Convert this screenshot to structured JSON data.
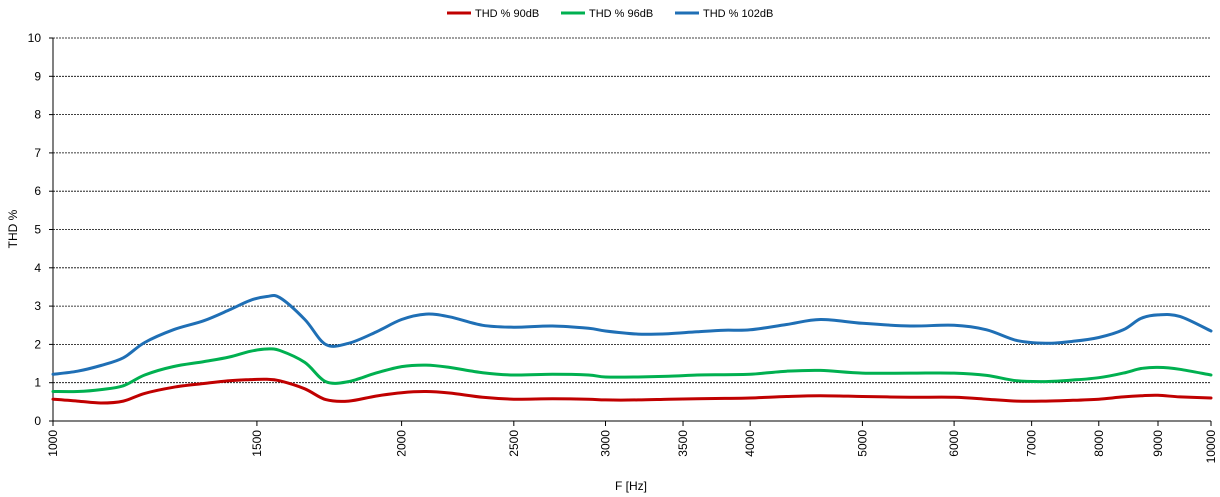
{
  "chart_data": {
    "type": "line",
    "title": "",
    "xlabel": "F [Hz]",
    "ylabel": "THD %",
    "ylim": [
      0,
      10
    ],
    "yticks": [
      "0",
      "1",
      "2",
      "3",
      "4",
      "5",
      "6",
      "7",
      "8",
      "9",
      "10"
    ],
    "xscale": "log",
    "xlim": [
      1000,
      10000
    ],
    "xticks": [
      "1000",
      "1500",
      "2000",
      "2500",
      "3000",
      "3500",
      "4000",
      "5000",
      "6000",
      "7000",
      "8000",
      "9000",
      "10000"
    ],
    "x_tick_positions": [
      1000,
      1500,
      2000,
      2500,
      3000,
      3500,
      4000,
      5000,
      6000,
      7000,
      8000,
      9000,
      10000
    ],
    "grid": true,
    "legend_position": "top",
    "x": [
      1000,
      1050,
      1100,
      1150,
      1200,
      1270,
      1350,
      1420,
      1480,
      1530,
      1570,
      1650,
      1720,
      1800,
      1900,
      2000,
      2100,
      2200,
      2350,
      2500,
      2700,
      2900,
      3000,
      3200,
      3400,
      3600,
      3800,
      4000,
      4300,
      4600,
      5000,
      5500,
      6000,
      6400,
      6800,
      7200,
      7600,
      8000,
      8400,
      8700,
      9000,
      9400,
      10000
    ],
    "series": [
      {
        "name": "THD % 90dB",
        "color": "#C00000",
        "values": [
          0.57,
          0.52,
          0.47,
          0.52,
          0.72,
          0.88,
          0.98,
          1.05,
          1.08,
          1.09,
          1.05,
          0.84,
          0.56,
          0.52,
          0.65,
          0.74,
          0.77,
          0.73,
          0.62,
          0.57,
          0.58,
          0.57,
          0.55,
          0.55,
          0.57,
          0.58,
          0.59,
          0.6,
          0.64,
          0.66,
          0.64,
          0.62,
          0.62,
          0.57,
          0.52,
          0.52,
          0.54,
          0.57,
          0.63,
          0.66,
          0.67,
          0.63,
          0.6
        ]
      },
      {
        "name": "THD % 96dB",
        "color": "#00B050",
        "values": [
          0.77,
          0.77,
          0.82,
          0.92,
          1.2,
          1.42,
          1.55,
          1.67,
          1.82,
          1.88,
          1.84,
          1.53,
          1.03,
          1.03,
          1.25,
          1.42,
          1.46,
          1.4,
          1.26,
          1.2,
          1.22,
          1.2,
          1.15,
          1.15,
          1.17,
          1.2,
          1.21,
          1.22,
          1.3,
          1.32,
          1.25,
          1.25,
          1.25,
          1.19,
          1.05,
          1.03,
          1.07,
          1.13,
          1.25,
          1.37,
          1.4,
          1.35,
          1.2
        ]
      },
      {
        "name": "THD % 102dB",
        "color": "#1F6FB5",
        "values": [
          1.22,
          1.3,
          1.45,
          1.65,
          2.05,
          2.38,
          2.62,
          2.9,
          3.15,
          3.25,
          3.22,
          2.65,
          2.0,
          2.03,
          2.32,
          2.65,
          2.79,
          2.72,
          2.5,
          2.45,
          2.48,
          2.42,
          2.35,
          2.27,
          2.28,
          2.33,
          2.37,
          2.38,
          2.52,
          2.65,
          2.55,
          2.48,
          2.5,
          2.38,
          2.1,
          2.03,
          2.08,
          2.18,
          2.38,
          2.68,
          2.77,
          2.73,
          2.35
        ]
      }
    ]
  }
}
